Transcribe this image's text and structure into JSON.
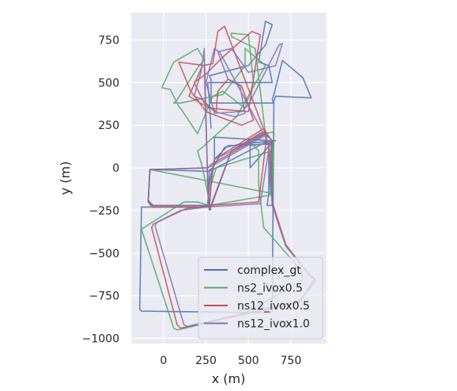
{
  "chart_data": {
    "type": "line",
    "xlabel": "x (m)",
    "ylabel": "y (m)",
    "xlim": [
      -190,
      960
    ],
    "ylim": [
      -1030,
      910
    ],
    "xticks": [
      0,
      250,
      500,
      750
    ],
    "yticks": [
      -1000,
      -750,
      -500,
      -250,
      0,
      250,
      500,
      750
    ],
    "xtick_labels": [
      "0",
      "250",
      "500",
      "750"
    ],
    "ytick_labels": [
      "−1000",
      "−750",
      "−500",
      "−250",
      "0",
      "250",
      "500",
      "750"
    ],
    "grid": true,
    "legend_position": "lower-right",
    "series": [
      {
        "name": "complex_gt",
        "color": "#4c72b0",
        "x": [
          260,
          270,
          290,
          360,
          460,
          660,
          640,
          510,
          510,
          510,
          640,
          620,
          300,
          300,
          290,
          260,
          -80,
          -90,
          -70,
          10,
          260,
          270,
          300,
          380,
          620,
          620,
          640,
          620,
          610,
          640,
          640,
          620,
          270,
          260,
          -130,
          -140,
          -130,
          630,
          640,
          650,
          660,
          870,
          820,
          700,
          650,
          640,
          650,
          630,
          280,
          280,
          270,
          500,
          600,
          640,
          600,
          560,
          620,
          640,
          620,
          260,
          270,
          280
        ],
        "y": [
          -120,
          -80,
          0,
          120,
          140,
          160,
          150,
          130,
          60,
          0,
          150,
          160,
          180,
          40,
          0,
          -20,
          -10,
          -200,
          -220,
          -220,
          -220,
          -100,
          50,
          130,
          140,
          -160,
          150,
          -150,
          -220,
          -220,
          150,
          160,
          -20,
          -230,
          -230,
          -830,
          -840,
          -850,
          -840,
          390,
          420,
          410,
          530,
          630,
          430,
          400,
          380,
          380,
          380,
          520,
          540,
          600,
          720,
          840,
          860,
          620,
          600,
          500,
          500,
          500,
          390,
          230
        ]
      },
      {
        "name": "ns2_ivox0.5",
        "color": "#55a868",
        "x": [
          270,
          290,
          400,
          580,
          650,
          640,
          -80,
          -90,
          -70,
          270,
          280,
          310,
          640,
          630,
          270,
          200,
          120,
          -130,
          60,
          80,
          130,
          450,
          500,
          820,
          810,
          590,
          560,
          560,
          500,
          600,
          540,
          400,
          400,
          500,
          530,
          480,
          350,
          290,
          200,
          100,
          90,
          40,
          -10,
          60,
          200,
          240,
          210,
          80,
          60,
          100,
          350,
          480,
          480,
          600,
          430,
          260,
          230,
          200,
          230,
          250,
          280
        ],
        "y": [
          -250,
          -200,
          100,
          200,
          210,
          -150,
          -10,
          -200,
          -230,
          -230,
          -100,
          0,
          100,
          -160,
          -220,
          -200,
          -200,
          -360,
          -940,
          -950,
          -940,
          -860,
          -840,
          -660,
          -600,
          -350,
          -100,
          100,
          160,
          200,
          700,
          770,
          790,
          780,
          500,
          350,
          450,
          420,
          200,
          350,
          360,
          460,
          470,
          620,
          700,
          630,
          600,
          400,
          380,
          380,
          430,
          600,
          700,
          600,
          300,
          150,
          120,
          100,
          0,
          -100,
          -250
        ]
      },
      {
        "name": "ns12_ivox0.5",
        "color": "#c44e52",
        "x": [
          270,
          290,
          400,
          580,
          610,
          600,
          280,
          260,
          -80,
          -90,
          -60,
          270,
          280,
          300,
          590,
          610,
          560,
          270,
          130,
          -60,
          -70,
          80,
          100,
          800,
          890,
          860,
          720,
          640,
          630,
          640,
          600,
          360,
          320,
          290,
          230,
          150,
          270,
          500,
          570,
          520,
          350,
          250,
          180,
          240,
          310,
          320,
          380,
          460,
          530,
          460,
          300,
          250,
          160,
          90,
          240,
          260,
          270
        ],
        "y": [
          -250,
          -200,
          100,
          210,
          200,
          200,
          20,
          0,
          -10,
          -200,
          -230,
          -230,
          -100,
          50,
          230,
          200,
          -200,
          -220,
          -240,
          -330,
          -350,
          -920,
          -940,
          -790,
          -650,
          -630,
          -450,
          -200,
          100,
          160,
          200,
          830,
          800,
          610,
          600,
          420,
          350,
          330,
          780,
          800,
          650,
          550,
          500,
          380,
          330,
          450,
          520,
          480,
          280,
          250,
          310,
          330,
          450,
          620,
          600,
          -100,
          -250
        ]
      },
      {
        "name": "ns12_ivox1.0",
        "color": "#8172b2",
        "x": [
          270,
          290,
          400,
          580,
          620,
          600,
          300,
          260,
          -80,
          -90,
          -60,
          260,
          270,
          300,
          610,
          630,
          570,
          250,
          100,
          -40,
          -50,
          120,
          140,
          800,
          900,
          870,
          720,
          640,
          620,
          600,
          330,
          300,
          250,
          300,
          460,
          500,
          680,
          700,
          660,
          500,
          400,
          320,
          380,
          450,
          480,
          420,
          300,
          230,
          180,
          220,
          240,
          260,
          270
        ],
        "y": [
          -250,
          -190,
          100,
          200,
          180,
          190,
          20,
          0,
          -10,
          -190,
          -220,
          -220,
          -100,
          50,
          200,
          170,
          -210,
          -230,
          -250,
          -320,
          -340,
          -920,
          -930,
          -780,
          -660,
          -640,
          -460,
          -220,
          120,
          180,
          680,
          700,
          500,
          320,
          330,
          370,
          720,
          730,
          600,
          560,
          700,
          680,
          520,
          480,
          320,
          300,
          330,
          400,
          420,
          560,
          700,
          -100,
          -250
        ]
      }
    ]
  }
}
